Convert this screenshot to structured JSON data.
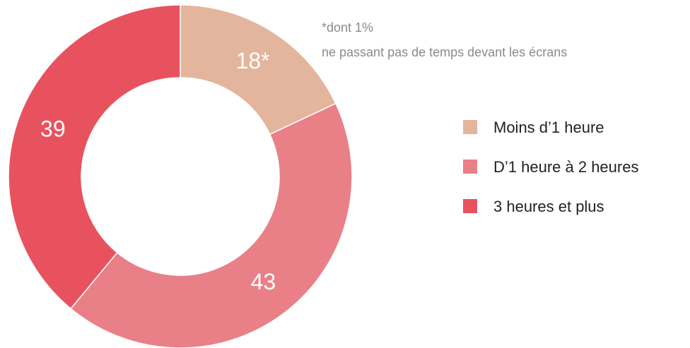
{
  "chart_data": {
    "type": "donut",
    "categories": [
      "Moins d’1 heure",
      "D’1 heure à 2 heures",
      "3 heures et plus"
    ],
    "values": [
      18,
      43,
      39
    ],
    "value_labels": [
      "18*",
      "43",
      "39"
    ],
    "colors": [
      "#e3b59c",
      "#e98087",
      "#e8525f"
    ],
    "annotation": [
      "*dont 1%",
      "ne passant pas de temps devant les écrans"
    ]
  }
}
